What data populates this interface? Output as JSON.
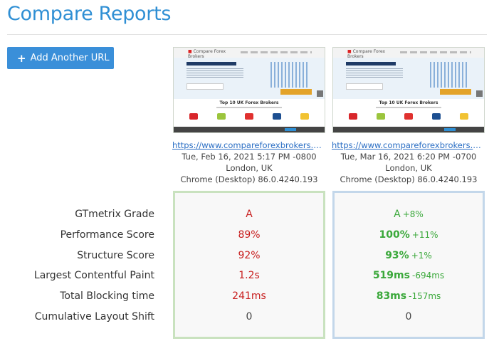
{
  "header": {
    "title": "Compare Reports"
  },
  "toolbar": {
    "add_label": "Add Another URL"
  },
  "thumbnail": {
    "logo_text": "Compare Forex Brokers",
    "heading": "Top 10 UK Forex Brokers"
  },
  "reports": [
    {
      "url": "https://www.compareforexbrokers.com/be...",
      "date": "Tue, Feb 16, 2021 5:17 PM -0800",
      "location": "London, UK",
      "browser": "Chrome (Desktop) 86.0.4240.193",
      "metrics": {
        "grade": {
          "value": "A",
          "delta": ""
        },
        "performance": {
          "value": "89%",
          "delta": ""
        },
        "structure": {
          "value": "92%",
          "delta": ""
        },
        "lcp": {
          "value": "1.2s",
          "delta": ""
        },
        "tbt": {
          "value": "241ms",
          "delta": ""
        },
        "cls": {
          "value": "0",
          "delta": ""
        }
      }
    },
    {
      "url": "https://www.compareforexbrokers.com/be...",
      "date": "Tue, Mar 16, 2021 6:20 PM -0700",
      "location": "London, UK",
      "browser": "Chrome (Desktop) 86.0.4240.193",
      "metrics": {
        "grade": {
          "value": "A",
          "delta": "+8%"
        },
        "performance": {
          "value": "100%",
          "delta": "+11%"
        },
        "structure": {
          "value": "93%",
          "delta": "+1%"
        },
        "lcp": {
          "value": "519ms",
          "delta": "-694ms"
        },
        "tbt": {
          "value": "83ms",
          "delta": "-157ms"
        },
        "cls": {
          "value": "0",
          "delta": ""
        }
      }
    }
  ],
  "metric_labels": {
    "grade": "GTmetrix Grade",
    "performance": "Performance Score",
    "structure": "Structure Score",
    "lcp": "Largest Contentful Paint",
    "tbt": "Total Blocking time",
    "cls": "Cumulative Layout Shift"
  },
  "colors": {
    "accent": "#2f8fd4",
    "bad": "#c81f1f",
    "good": "#3aa83a",
    "panel1_border": "#c9e2bf",
    "panel2_border": "#c3d7ea"
  }
}
